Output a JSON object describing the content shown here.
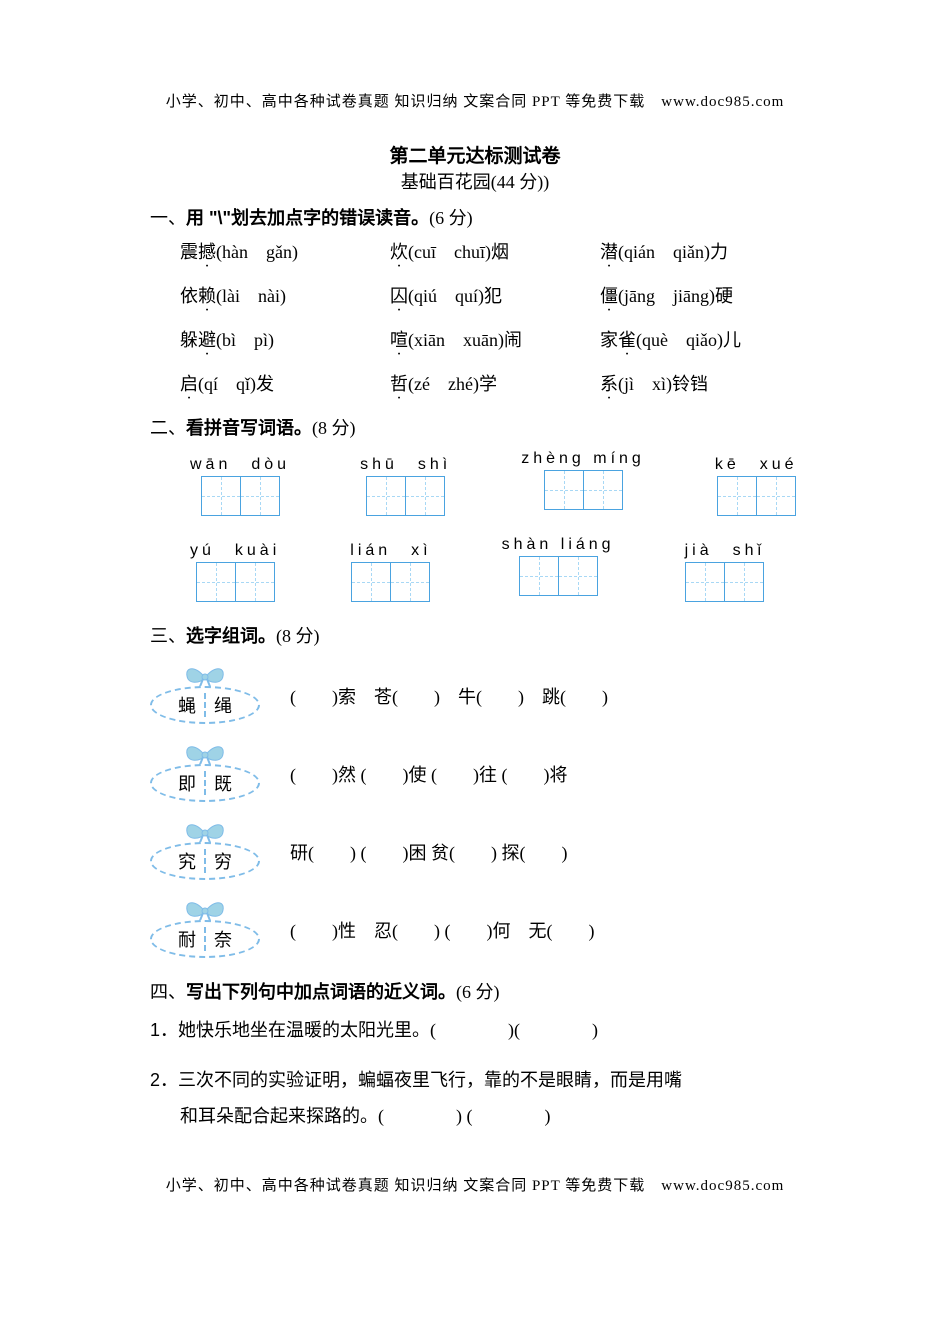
{
  "header_text": "小学、初中、高中各种试卷真题 知识归纳 文案合同 PPT 等免费下载　www.doc985.com",
  "footer_text": "小学、初中、高中各种试卷真题 知识归纳 文案合同 PPT 等免费下载　www.doc985.com",
  "title": "第二单元达标测试卷",
  "subtitle": "基础百花园(44 分))",
  "colors": {
    "box_border": "#4aa3e0",
    "box_grid": "#a8d8f5",
    "bow_fill": "#9fd3e6",
    "bow_stroke": "#7fbce8",
    "text": "#000000",
    "background": "#ffffff"
  },
  "sec1": {
    "heading_prefix": "一、",
    "heading_bold": "用 \"\\\"划去加点字的错误读音。",
    "heading_points": "(6 分)",
    "rows": [
      [
        {
          "pre": "震",
          "dot": "撼",
          "post": "(hàn　gǎn)"
        },
        {
          "pre": "",
          "dot": "炊",
          "post": "(cuī　chuī)烟"
        },
        {
          "pre": "",
          "dot": "潜",
          "post": "(qián　qiǎn)力"
        }
      ],
      [
        {
          "pre": "依",
          "dot": "赖",
          "post": "(lài　nài)"
        },
        {
          "pre": "",
          "dot": "囚",
          "post": "(qiú　quí)犯"
        },
        {
          "pre": "",
          "dot": "僵",
          "post": "(jāng　jiāng)硬"
        }
      ],
      [
        {
          "pre": "躲",
          "dot": "避",
          "post": "(bì　pì)"
        },
        {
          "pre": "",
          "dot": "喧",
          "post": "(xiān　xuān)闹"
        },
        {
          "pre": "家",
          "dot": "雀",
          "post": "(què　qiǎo)儿"
        }
      ],
      [
        {
          "pre": "",
          "dot": "启",
          "post": "(qí　qǐ)发"
        },
        {
          "pre": "",
          "dot": "哲",
          "post": "(zé　zhé)学"
        },
        {
          "pre": "",
          "dot": "系",
          "post": "(jì　xì)铃铛"
        }
      ]
    ]
  },
  "sec2": {
    "heading_prefix": "二、",
    "heading_bold": "看拼音写词语。",
    "heading_points": "(8 分)",
    "rows": [
      [
        "wān　dòu",
        "shū　shì",
        "zhèng míng",
        "kē　xué"
      ],
      [
        "yú　kuài",
        "lián　xì",
        "shàn liáng",
        "jià　shǐ"
      ]
    ]
  },
  "sec3": {
    "heading_prefix": "三、",
    "heading_bold": "选字组词。",
    "heading_points": "(8 分)",
    "items": [
      {
        "a": "蝇",
        "b": "绳",
        "blanks": "(　　)索　苍(　　)　牛(　　)　跳(　　)"
      },
      {
        "a": "即",
        "b": "既",
        "blanks": "(　　)然  (　　)使  (　　)往  (　　)将"
      },
      {
        "a": "究",
        "b": "穷",
        "blanks": "研(　　)  (　　)困  贫(　　)  探(　　)"
      },
      {
        "a": "耐",
        "b": "奈",
        "blanks": "(　　)性　忍(　　)  (　　)何　无(　　)"
      }
    ]
  },
  "sec4": {
    "heading_prefix": "四、",
    "heading_bold": "写出下列句中加点词语的近义词。",
    "heading_points": "(6 分)",
    "q1_num": "1．",
    "q1_parts": {
      "p1": "她",
      "d1": "快",
      "d2": "乐",
      "p2": "地坐在",
      "d3": "温",
      "d4": "暖",
      "p3": "的太阳光里。(　　　　)(　　　　)"
    },
    "q2_num": "2．",
    "q2_parts": {
      "p1": "三次不同的实验",
      "d1": "证",
      "d2": "明",
      "p2": "，蝙蝠夜里飞行，靠的不是眼睛，而是用嘴",
      "p3": "和耳朵",
      "d3": "配",
      "d4": "合",
      "p4": "起来探路的。(　　　　) (　　　　)"
    }
  }
}
